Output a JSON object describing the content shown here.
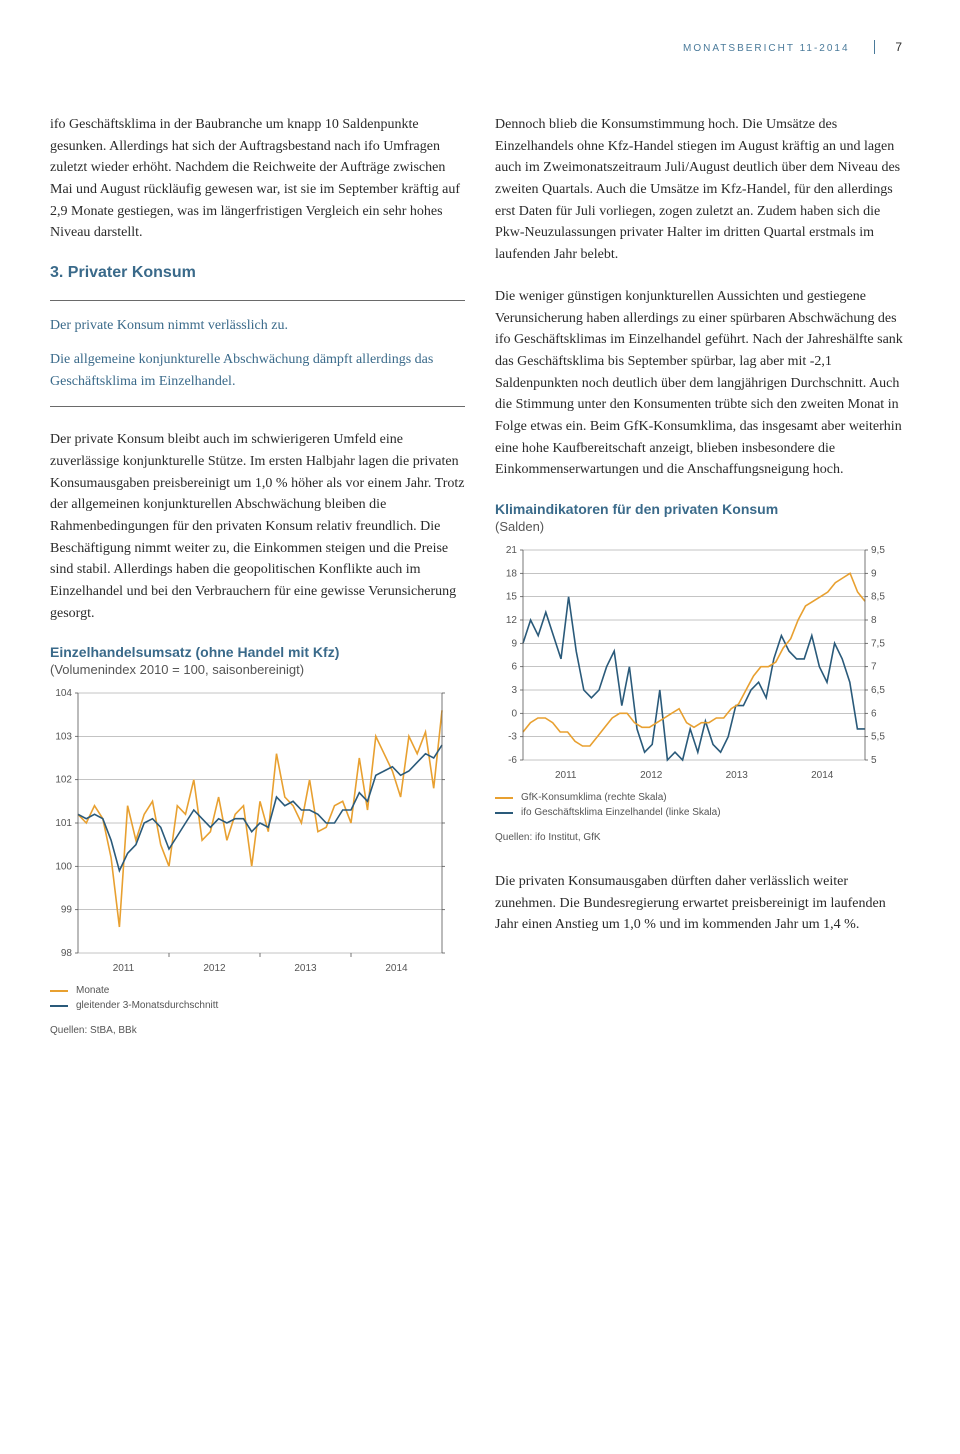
{
  "header": {
    "title": "MONATSBERICHT 11-2014",
    "page_number": "7"
  },
  "left_col": {
    "para1": "ifo Geschäftsklima in der Baubranche um knapp 10 Saldenpunkte gesunken. Allerdings hat sich der Auftragsbestand nach ifo Umfragen zuletzt wieder erhöht. Nachdem die Reichweite der Aufträge zwischen Mai und August rückläufig gewesen war, ist sie im September kräftig auf 2,9 Monate gestiegen, was im längerfristigen Vergleich ein sehr hohes Niveau darstellt.",
    "section_title": "3. Privater Konsum",
    "rule_line1": "Der private Konsum nimmt verlässlich zu.",
    "rule_line2": "Die allgemeine konjunkturelle Abschwächung dämpft allerdings das Geschäftsklima im Einzelhandel.",
    "para2": "Der private Konsum bleibt auch im schwierigeren Umfeld eine zuverlässige konjunkturelle Stütze. Im ersten Halbjahr lagen die privaten Konsumausgaben preisbereinigt um 1,0 % höher als vor einem Jahr. Trotz der allgemeinen konjunkturellen Abschwächung bleiben die Rahmenbedingungen für den privaten Konsum relativ freundlich. Die Beschäftigung nimmt weiter zu, die Einkommen steigen und die Preise sind stabil. Allerdings haben die geopolitischen Konflikte auch im Einzelhandel und bei den Verbrauchern für eine gewisse Verunsicherung gesorgt."
  },
  "right_col": {
    "para1": "Dennoch blieb die Konsumstimmung hoch. Die Umsätze des Einzelhandels ohne Kfz-Handel stiegen im August kräftig an und lagen auch im Zweimonatszeitraum Juli/August deutlich über dem Niveau des zweiten Quartals. Auch die Umsätze im Kfz-Handel, für den allerdings erst Daten für Juli vorliegen, zogen zuletzt an. Zudem haben sich die Pkw-Neuzulassungen privater Halter im dritten Quartal erstmals im laufenden Jahr belebt.",
    "para2": "Die weniger günstigen konjunkturellen Aussichten und gestiegene Verunsicherung haben allerdings zu einer spürbaren Abschwächung des ifo Geschäftsklimas im Einzelhandel geführt. Nach der Jahreshälfte sank das Geschäftsklima bis September spürbar, lag aber mit -2,1 Saldenpunkten noch deutlich über dem langjährigen Durchschnitt. Auch die Stimmung unter den Konsumenten trübte sich den zweiten Monat in Folge etwas ein. Beim GfK-Konsumklima, das insgesamt aber weiterhin eine hohe Kaufbereitschaft anzeigt, blieben insbesondere die Einkommenserwartungen und die Anschaffungsneigung hoch.",
    "para3": "Die privaten Konsumausgaben dürften daher verlässlich weiter zunehmen. Die Bundesregierung erwartet preisbereinigt im laufenden Jahr einen Anstieg um 1,0 % und im kommenden Jahr um 1,4 %."
  },
  "chart1": {
    "type": "line",
    "title": "Einzelhandelsumsatz (ohne Handel mit Kfz)",
    "subtitle": "(Volumenindex 2010 = 100, saisonbereinigt)",
    "ymin": 98,
    "ymax": 104,
    "ystep": 1,
    "yticks": [
      98,
      99,
      100,
      101,
      102,
      103,
      104
    ],
    "xlabels": [
      "2011",
      "2012",
      "2013",
      "2014"
    ],
    "background_color": "#ffffff",
    "grid_color": "#888888",
    "colors": {
      "monate": "#e8a030",
      "gleitend": "#2a5a7a"
    },
    "legend": [
      {
        "label": "Monate",
        "color": "#e8a030"
      },
      {
        "label": "gleitender 3-Monatsdurchschnitt",
        "color": "#2a5a7a"
      }
    ],
    "series_monate": [
      101.2,
      101.0,
      101.4,
      101.1,
      100.2,
      98.6,
      101.4,
      100.6,
      101.2,
      101.5,
      100.5,
      100.0,
      101.4,
      101.2,
      102.0,
      100.6,
      100.8,
      101.6,
      100.6,
      101.2,
      101.4,
      100.0,
      101.5,
      100.8,
      102.6,
      101.6,
      101.4,
      101.0,
      102.0,
      100.8,
      100.9,
      101.4,
      101.5,
      101.0,
      102.5,
      101.3,
      103.0,
      102.6,
      102.2,
      101.6,
      103.0,
      102.6,
      103.1,
      101.8,
      103.6
    ],
    "series_gleitend": [
      101.2,
      101.1,
      101.2,
      101.1,
      100.6,
      99.9,
      100.3,
      100.5,
      101.0,
      101.1,
      100.9,
      100.4,
      100.7,
      101.0,
      101.3,
      101.1,
      100.9,
      101.1,
      101.0,
      101.1,
      101.1,
      100.8,
      101.0,
      100.9,
      101.6,
      101.4,
      101.5,
      101.3,
      101.3,
      101.2,
      101.0,
      101.0,
      101.3,
      101.3,
      101.7,
      101.5,
      102.1,
      102.2,
      102.3,
      102.1,
      102.2,
      102.4,
      102.6,
      102.5,
      102.8
    ],
    "sources": "Quellen: StBA, BBk"
  },
  "chart2": {
    "type": "line-dual-axis",
    "title": "Klimaindikatoren für den privaten Konsum",
    "subtitle": "(Salden)",
    "y_left": {
      "min": -6,
      "max": 21,
      "step": 3,
      "ticks": [
        -6,
        -3,
        0,
        3,
        6,
        9,
        12,
        15,
        18,
        21
      ]
    },
    "y_right": {
      "min": 5,
      "max": 9.5,
      "step": 0.5,
      "ticks": [
        5,
        5.5,
        6,
        6.5,
        7,
        7.5,
        8,
        8.5,
        9,
        9.5
      ]
    },
    "xlabels": [
      "2011",
      "2012",
      "2013",
      "2014"
    ],
    "background_color": "#ffffff",
    "grid_color": "#888888",
    "colors": {
      "gfk": "#e8a030",
      "ifo": "#2a5a7a"
    },
    "legend": [
      {
        "label": "GfK-Konsumklima (rechte Skala)",
        "color": "#e8a030"
      },
      {
        "label": "ifo Geschäftsklima Einzelhandel (linke Skala)",
        "color": "#2a5a7a"
      }
    ],
    "series_ifo": [
      9,
      12,
      10,
      13,
      10,
      7,
      15,
      8,
      3,
      2,
      3,
      6,
      8,
      1,
      6,
      -2,
      -5,
      -4,
      3,
      -6,
      -5,
      -6,
      -2,
      -5,
      -1,
      -4,
      -5,
      -3,
      1,
      1,
      3,
      4,
      2,
      7,
      10,
      8,
      7,
      7,
      10,
      6,
      4,
      9,
      7,
      4,
      -2,
      -2
    ],
    "series_gfk": [
      5.6,
      5.8,
      5.9,
      5.9,
      5.8,
      5.6,
      5.6,
      5.4,
      5.3,
      5.3,
      5.5,
      5.7,
      5.9,
      6.0,
      6.0,
      5.8,
      5.7,
      5.7,
      5.8,
      5.9,
      6.0,
      6.1,
      5.8,
      5.7,
      5.8,
      5.8,
      5.9,
      5.9,
      6.1,
      6.2,
      6.5,
      6.8,
      7.0,
      7.0,
      7.1,
      7.4,
      7.6,
      8.0,
      8.3,
      8.4,
      8.5,
      8.6,
      8.8,
      8.9,
      9.0,
      8.6,
      8.4
    ],
    "sources": "Quellen: ifo Institut, GfK"
  }
}
